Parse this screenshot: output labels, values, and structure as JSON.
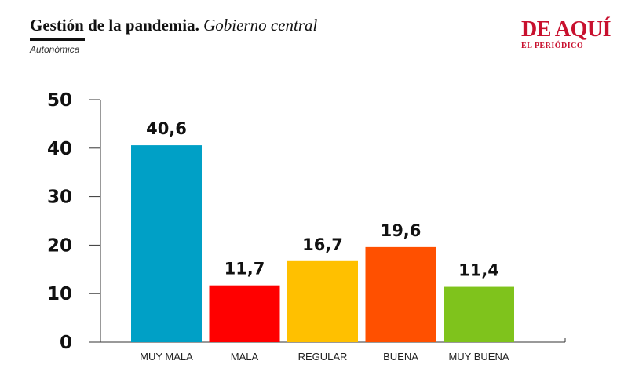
{
  "header": {
    "title_bold": "Gestión de la pandemia.",
    "title_italic": "Gobierno central",
    "subtitle": "Autonómica"
  },
  "logo": {
    "main": "DE AQUÍ",
    "sub": "EL PERIÓDICO",
    "color": "#c8102e"
  },
  "chart_data": {
    "type": "bar",
    "categories": [
      "MUY MALA",
      "MALA",
      "REGULAR",
      "BUENA",
      "MUY BUENA"
    ],
    "values": [
      40.6,
      11.7,
      16.7,
      19.6,
      11.4
    ],
    "value_labels": [
      "40,6",
      "11,7",
      "16,7",
      "19,6",
      "11,4"
    ],
    "colors": [
      "#00a0c6",
      "#ff0000",
      "#ffc000",
      "#ff5000",
      "#7fc31c"
    ],
    "ylim": [
      0,
      50
    ],
    "yticks": [
      0,
      10,
      20,
      30,
      40,
      50
    ],
    "grid": false,
    "legend": "none"
  }
}
